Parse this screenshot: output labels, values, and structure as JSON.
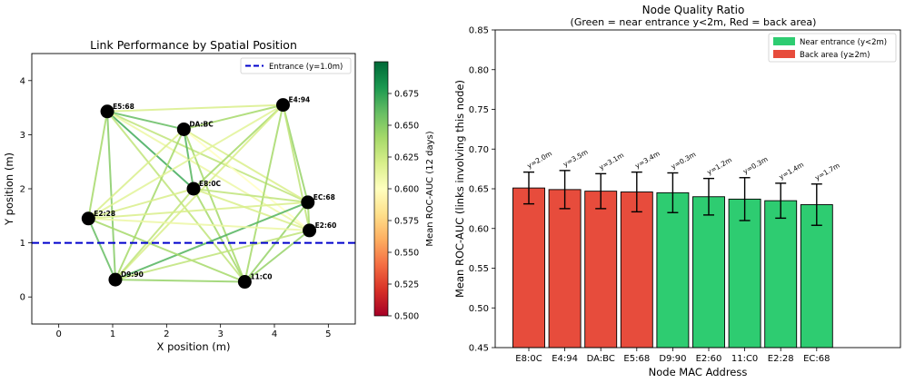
{
  "chart_data": [
    {
      "type": "network",
      "title": "Link Performance by Spatial Position",
      "xlabel": "X position (m)",
      "ylabel": "Y position (m)",
      "xlim": [
        -0.5,
        5.5
      ],
      "ylim": [
        -0.5,
        4.5
      ],
      "xticks": [
        "0",
        "1",
        "2",
        "3",
        "4",
        "5"
      ],
      "yticks": [
        "0",
        "1",
        "2",
        "3",
        "4"
      ],
      "entrance_line": {
        "y": 1.0,
        "label": "Entrance (y=1.0m)",
        "color": "#0000cc"
      },
      "legend_position": "top-right",
      "colorbar": {
        "label": "Mean ROC-AUC (12 days)",
        "range": [
          0.5,
          0.7
        ],
        "ticks": [
          "0.500",
          "0.525",
          "0.550",
          "0.575",
          "0.600",
          "0.625",
          "0.650",
          "0.675"
        ],
        "colormap": "RdYlGn"
      },
      "nodes": [
        {
          "id": "E5:68",
          "x": 0.9,
          "y": 3.43
        },
        {
          "id": "DA:BC",
          "x": 2.32,
          "y": 3.1
        },
        {
          "id": "E4:94",
          "x": 4.16,
          "y": 3.55
        },
        {
          "id": "E8:0C",
          "x": 2.5,
          "y": 2.0
        },
        {
          "id": "EC:68",
          "x": 4.62,
          "y": 1.75
        },
        {
          "id": "E2:28",
          "x": 0.55,
          "y": 1.45
        },
        {
          "id": "E2:60",
          "x": 4.65,
          "y": 1.23
        },
        {
          "id": "D9:90",
          "x": 1.05,
          "y": 0.32
        },
        {
          "id": "11:C0",
          "x": 3.45,
          "y": 0.28
        }
      ],
      "links": [
        {
          "a": "E5:68",
          "b": "DA:BC",
          "auc": 0.66
        },
        {
          "a": "E5:68",
          "b": "E4:94",
          "auc": 0.62
        },
        {
          "a": "E5:68",
          "b": "E8:0C",
          "auc": 0.67
        },
        {
          "a": "E5:68",
          "b": "EC:68",
          "auc": 0.63
        },
        {
          "a": "E5:68",
          "b": "E2:28",
          "auc": 0.64
        },
        {
          "a": "E5:68",
          "b": "E2:60",
          "auc": 0.61
        },
        {
          "a": "E5:68",
          "b": "D9:90",
          "auc": 0.65
        },
        {
          "a": "E5:68",
          "b": "11:C0",
          "auc": 0.63
        },
        {
          "a": "DA:BC",
          "b": "E4:94",
          "auc": 0.64
        },
        {
          "a": "DA:BC",
          "b": "E8:0C",
          "auc": 0.665
        },
        {
          "a": "DA:BC",
          "b": "EC:68",
          "auc": 0.62
        },
        {
          "a": "DA:BC",
          "b": "E2:28",
          "auc": 0.62
        },
        {
          "a": "DA:BC",
          "b": "E2:60",
          "auc": 0.6
        },
        {
          "a": "DA:BC",
          "b": "D9:90",
          "auc": 0.64
        },
        {
          "a": "DA:BC",
          "b": "11:C0",
          "auc": 0.64
        },
        {
          "a": "E4:94",
          "b": "E8:0C",
          "auc": 0.64
        },
        {
          "a": "E4:94",
          "b": "EC:68",
          "auc": 0.645
        },
        {
          "a": "E4:94",
          "b": "E2:28",
          "auc": 0.615
        },
        {
          "a": "E4:94",
          "b": "E2:60",
          "auc": 0.63
        },
        {
          "a": "E4:94",
          "b": "D9:90",
          "auc": 0.62
        },
        {
          "a": "E4:94",
          "b": "11:C0",
          "auc": 0.64
        },
        {
          "a": "E8:0C",
          "b": "EC:68",
          "auc": 0.63
        },
        {
          "a": "E8:0C",
          "b": "E2:28",
          "auc": 0.62
        },
        {
          "a": "E8:0C",
          "b": "E2:60",
          "auc": 0.62
        },
        {
          "a": "E8:0C",
          "b": "D9:90",
          "auc": 0.63
        },
        {
          "a": "E8:0C",
          "b": "11:C0",
          "auc": 0.64
        },
        {
          "a": "EC:68",
          "b": "E2:28",
          "auc": 0.62
        },
        {
          "a": "EC:68",
          "b": "E2:60",
          "auc": 0.64
        },
        {
          "a": "EC:68",
          "b": "D9:90",
          "auc": 0.665
        },
        {
          "a": "EC:68",
          "b": "11:C0",
          "auc": 0.645
        },
        {
          "a": "E2:28",
          "b": "E2:60",
          "auc": 0.61
        },
        {
          "a": "E2:28",
          "b": "D9:90",
          "auc": 0.66
        },
        {
          "a": "E2:28",
          "b": "11:C0",
          "auc": 0.64
        },
        {
          "a": "E2:60",
          "b": "D9:90",
          "auc": 0.63
        },
        {
          "a": "E2:60",
          "b": "11:C0",
          "auc": 0.645
        },
        {
          "a": "D9:90",
          "b": "11:C0",
          "auc": 0.645
        }
      ]
    },
    {
      "type": "bar",
      "title": "Node Quality Ratio",
      "subtitle": "(Green = near entrance y<2m, Red = back area)",
      "xlabel": "Node MAC Address",
      "ylabel": "Mean ROC-AUC (links involving this node)",
      "ylim": [
        0.45,
        0.85
      ],
      "yticks": [
        "0.45",
        "0.50",
        "0.55",
        "0.60",
        "0.65",
        "0.70",
        "0.75",
        "0.80",
        "0.85"
      ],
      "categories": [
        "E8:0C",
        "E4:94",
        "DA:BC",
        "E5:68",
        "D9:90",
        "E2:60",
        "11:C0",
        "E2:28",
        "EC:68"
      ],
      "values": [
        0.651,
        0.649,
        0.647,
        0.646,
        0.645,
        0.64,
        0.637,
        0.635,
        0.63
      ],
      "errors": [
        0.02,
        0.024,
        0.022,
        0.025,
        0.025,
        0.023,
        0.027,
        0.022,
        0.026
      ],
      "bar_labels": [
        "y=2.0m",
        "y=3.5m",
        "y=3.1m",
        "y=3.4m",
        "y=0.3m",
        "y=1.2m",
        "y=0.3m",
        "y=1.4m",
        "y=1.7m"
      ],
      "groups": [
        "back",
        "back",
        "back",
        "back",
        "near",
        "near",
        "near",
        "near",
        "near"
      ],
      "legend": [
        {
          "key": "near",
          "label": "Near entrance (y<2m)",
          "color": "#2ecc71"
        },
        {
          "key": "back",
          "label": "Back area (y≥2m)",
          "color": "#e74c3c"
        }
      ],
      "legend_position": "top-right"
    }
  ]
}
